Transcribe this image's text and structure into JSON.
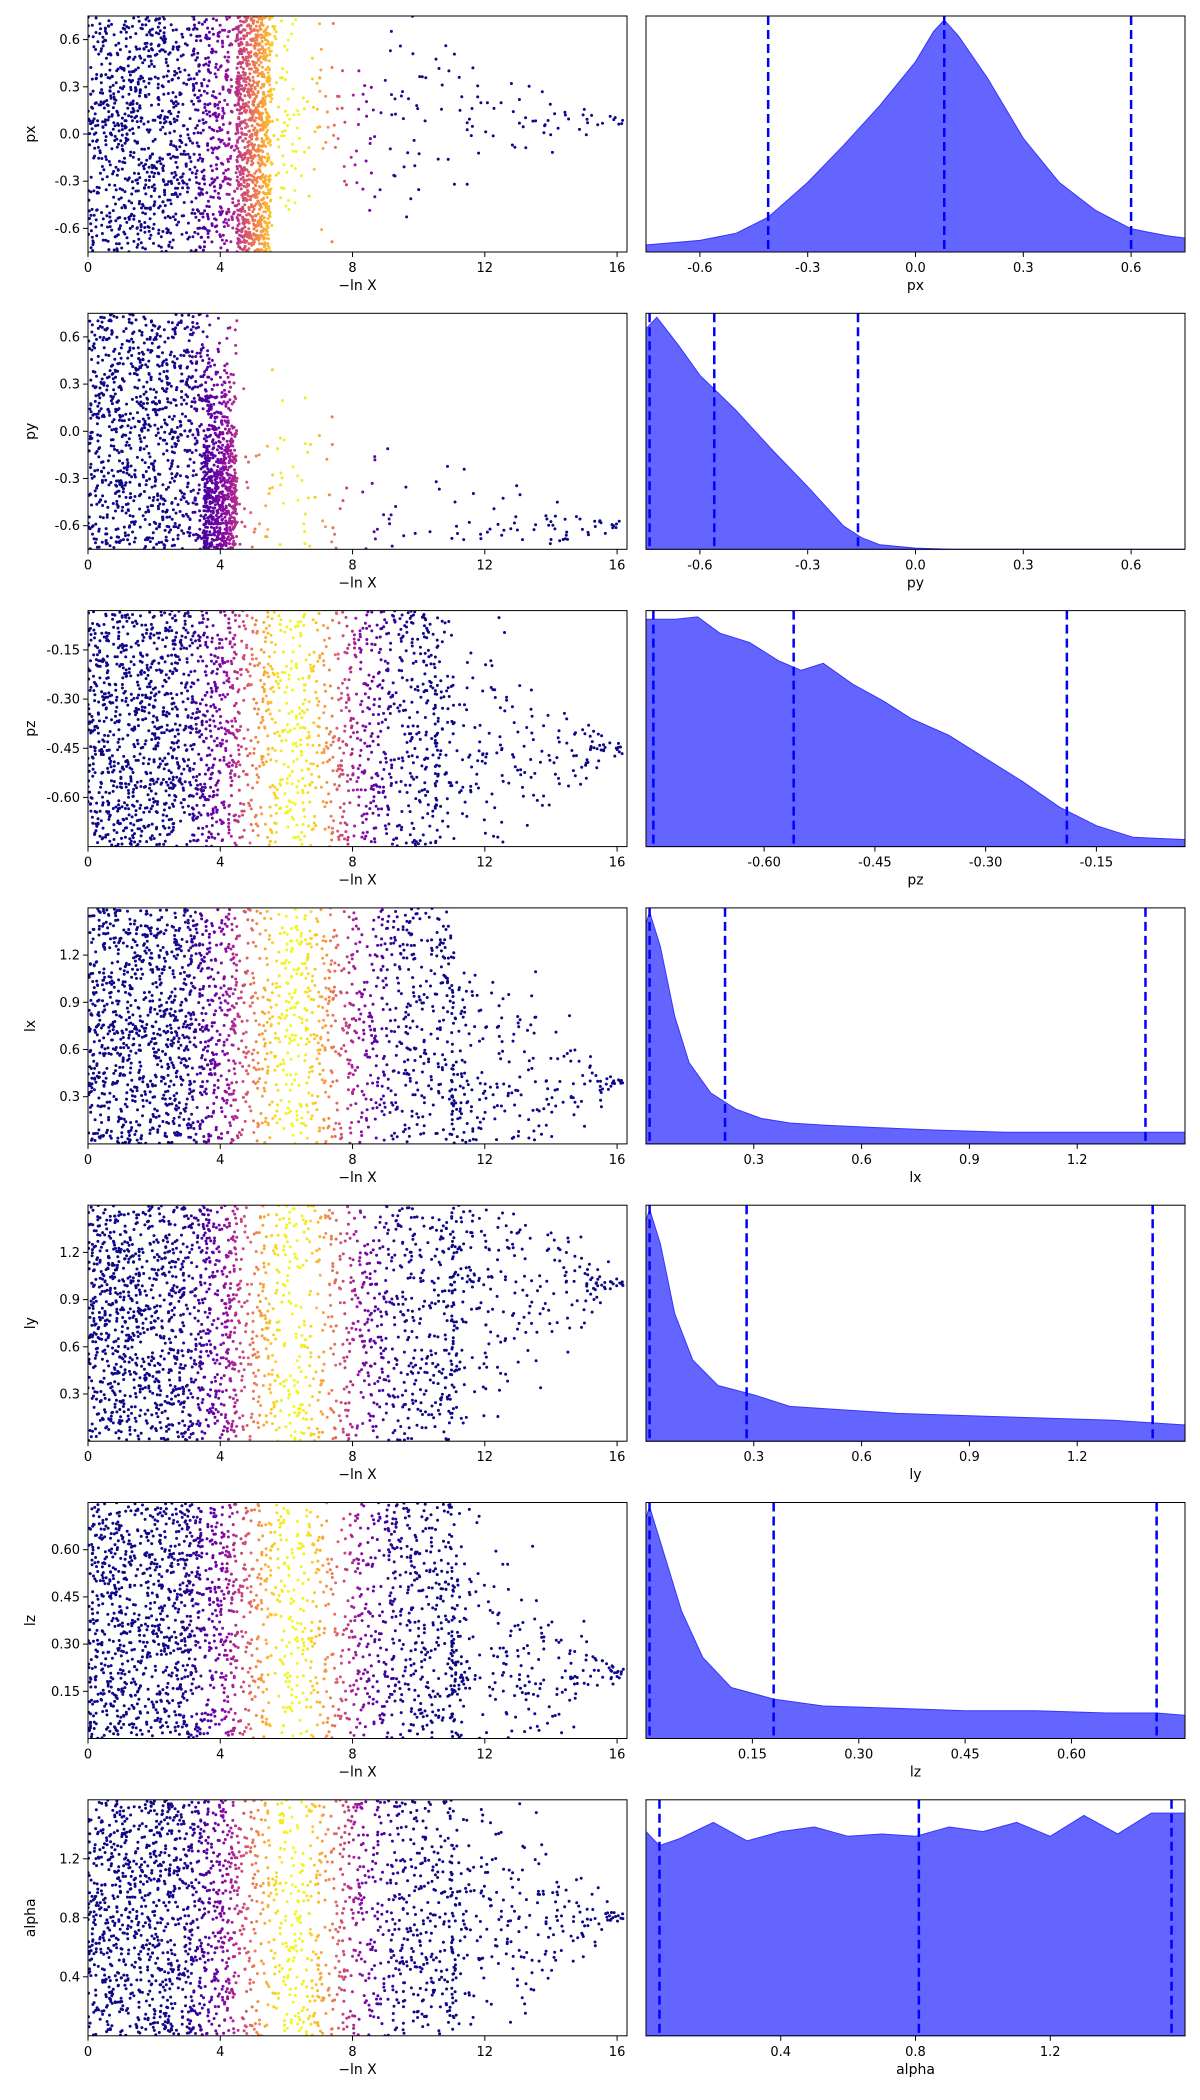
{
  "chart_data": [
    {
      "type": "scatter",
      "param": "px",
      "xlabel": "−ln X",
      "ylabel": "px",
      "xlim": [
        0,
        16.3
      ],
      "ylim": [
        -0.75,
        0.75
      ],
      "xticks": [
        "0",
        "4",
        "8",
        "12",
        "16"
      ],
      "yticks": [
        "-0.6",
        "-0.3",
        "0.0",
        "0.3",
        "0.6"
      ],
      "colormap": "plasma",
      "point_color_peak_x": 6.2,
      "approx_shape": {
        "x_range": [
          0,
          16.2
        ],
        "dense_until": 5.5,
        "tail_center_y": 0.08,
        "tail_end_x": 16.2
      }
    },
    {
      "type": "area",
      "param": "px",
      "xlabel": "px",
      "xlim": [
        -0.75,
        0.75
      ],
      "xticks": [
        "-0.6",
        "-0.3",
        "0.0",
        "0.3",
        "0.6"
      ],
      "fill": "#6464ff",
      "quantile_lines": [
        -0.41,
        0.08,
        0.6
      ],
      "quantile_line_color": "#0000ff",
      "density_x": [
        -0.75,
        -0.6,
        -0.5,
        -0.41,
        -0.3,
        -0.2,
        -0.1,
        0.0,
        0.05,
        0.08,
        0.12,
        0.2,
        0.3,
        0.4,
        0.5,
        0.6,
        0.7,
        0.75
      ],
      "density_y": [
        0.03,
        0.05,
        0.08,
        0.15,
        0.3,
        0.46,
        0.63,
        0.82,
        0.95,
        1.0,
        0.93,
        0.75,
        0.49,
        0.3,
        0.18,
        0.1,
        0.07,
        0.06
      ]
    },
    {
      "type": "scatter",
      "param": "py",
      "xlabel": "−ln X",
      "ylabel": "py",
      "xlim": [
        0,
        16.3
      ],
      "ylim": [
        -0.75,
        0.75
      ],
      "xticks": [
        "0",
        "4",
        "8",
        "12",
        "16"
      ],
      "yticks": [
        "-0.6",
        "-0.3",
        "0.0",
        "0.3",
        "0.6"
      ],
      "colormap": "plasma",
      "point_color_peak_x": 6.2,
      "approx_shape": {
        "x_range": [
          0,
          16.2
        ],
        "dense_until": 3.5,
        "tail_center_y": -0.6,
        "tail_end_x": 16.2
      }
    },
    {
      "type": "area",
      "param": "py",
      "xlabel": "py",
      "xlim": [
        -0.75,
        0.75
      ],
      "xticks": [
        "-0.6",
        "-0.3",
        "0.0",
        "0.3",
        "0.6"
      ],
      "fill": "#6464ff",
      "quantile_lines": [
        -0.74,
        -0.56,
        -0.16
      ],
      "quantile_line_color": "#0000ff",
      "density_x": [
        -0.75,
        -0.72,
        -0.66,
        -0.6,
        -0.5,
        -0.4,
        -0.3,
        -0.2,
        -0.15,
        -0.1,
        0.0,
        0.1,
        0.3,
        0.75
      ],
      "density_y": [
        0.95,
        1.0,
        0.88,
        0.75,
        0.6,
        0.43,
        0.27,
        0.1,
        0.05,
        0.02,
        0.005,
        0.0,
        0.0,
        0.0
      ]
    },
    {
      "type": "scatter",
      "param": "pz",
      "xlabel": "−ln X",
      "ylabel": "pz",
      "xlim": [
        0,
        16.3
      ],
      "ylim": [
        -0.75,
        -0.03
      ],
      "xticks": [
        "0",
        "4",
        "8",
        "12",
        "16"
      ],
      "yticks": [
        "-0.60",
        "-0.45",
        "-0.30",
        "-0.15"
      ],
      "colormap": "plasma",
      "point_color_peak_x": 6.2,
      "approx_shape": {
        "x_range": [
          0,
          16.2
        ],
        "dense_until": 10.5,
        "tail_center_y": -0.45,
        "tail_end_x": 16.2
      }
    },
    {
      "type": "area",
      "param": "pz",
      "xlabel": "pz",
      "xlim": [
        -0.76,
        -0.03
      ],
      "xticks": [
        "-0.60",
        "-0.45",
        "-0.30",
        "-0.15"
      ],
      "fill": "#6464ff",
      "quantile_lines": [
        -0.75,
        -0.56,
        -0.19
      ],
      "quantile_line_color": "#0000ff",
      "density_x": [
        -0.76,
        -0.72,
        -0.69,
        -0.66,
        -0.62,
        -0.58,
        -0.55,
        -0.52,
        -0.48,
        -0.44,
        -0.4,
        -0.35,
        -0.3,
        -0.25,
        -0.2,
        -0.15,
        -0.1,
        -0.03
      ],
      "density_y": [
        0.98,
        0.98,
        0.99,
        0.92,
        0.88,
        0.8,
        0.76,
        0.79,
        0.7,
        0.63,
        0.55,
        0.48,
        0.38,
        0.28,
        0.17,
        0.09,
        0.04,
        0.03
      ]
    },
    {
      "type": "scatter",
      "param": "lx",
      "xlabel": "−ln X",
      "ylabel": "lx",
      "xlim": [
        0,
        16.3
      ],
      "ylim": [
        0,
        1.5
      ],
      "xticks": [
        "0",
        "4",
        "8",
        "12",
        "16"
      ],
      "yticks": [
        "0.3",
        "0.6",
        "0.9",
        "1.2"
      ],
      "colormap": "plasma",
      "point_color_peak_x": 6.2,
      "approx_shape": {
        "x_range": [
          0,
          16.2
        ],
        "dense_until": 11,
        "tail_center_y": 0.4,
        "tail_end_x": 16.2
      }
    },
    {
      "type": "area",
      "param": "lx",
      "xlabel": "lx",
      "xlim": [
        0,
        1.5
      ],
      "xticks": [
        "0.3",
        "0.6",
        "0.9",
        "1.2"
      ],
      "fill": "#6464ff",
      "quantile_lines": [
        0.01,
        0.22,
        1.39
      ],
      "quantile_line_color": "#0000ff",
      "density_x": [
        0.0,
        0.01,
        0.04,
        0.08,
        0.12,
        0.18,
        0.25,
        0.32,
        0.4,
        0.5,
        0.65,
        0.8,
        1.0,
        1.2,
        1.4,
        1.5
      ],
      "density_y": [
        0.95,
        1.0,
        0.85,
        0.55,
        0.35,
        0.22,
        0.15,
        0.11,
        0.09,
        0.08,
        0.07,
        0.06,
        0.05,
        0.05,
        0.05,
        0.05
      ]
    },
    {
      "type": "scatter",
      "param": "ly",
      "xlabel": "−ln X",
      "ylabel": "ly",
      "xlim": [
        0,
        16.3
      ],
      "ylim": [
        0,
        1.5
      ],
      "xticks": [
        "0",
        "4",
        "8",
        "12",
        "16"
      ],
      "yticks": [
        "0.3",
        "0.6",
        "0.9",
        "1.2"
      ],
      "colormap": "plasma",
      "point_color_peak_x": 6.2,
      "approx_shape": {
        "x_range": [
          0,
          16.2
        ],
        "dense_until": 11,
        "tail_center_y": 1.0,
        "tail_end_x": 16.2
      }
    },
    {
      "type": "area",
      "param": "ly",
      "xlabel": "ly",
      "xlim": [
        0,
        1.5
      ],
      "xticks": [
        "0.3",
        "0.6",
        "0.9",
        "1.2"
      ],
      "fill": "#6464ff",
      "quantile_lines": [
        0.01,
        0.28,
        1.41
      ],
      "quantile_line_color": "#0000ff",
      "density_x": [
        0.0,
        0.01,
        0.04,
        0.08,
        0.13,
        0.2,
        0.3,
        0.4,
        0.5,
        0.7,
        0.9,
        1.1,
        1.3,
        1.5
      ],
      "density_y": [
        0.95,
        1.0,
        0.85,
        0.55,
        0.35,
        0.24,
        0.2,
        0.15,
        0.14,
        0.12,
        0.11,
        0.1,
        0.09,
        0.07
      ]
    },
    {
      "type": "scatter",
      "param": "lz",
      "xlabel": "−ln X",
      "ylabel": "lz",
      "xlim": [
        0,
        16.3
      ],
      "ylim": [
        0,
        0.75
      ],
      "xticks": [
        "0",
        "4",
        "8",
        "12",
        "16"
      ],
      "yticks": [
        "0.15",
        "0.30",
        "0.45",
        "0.60"
      ],
      "colormap": "plasma",
      "point_color_peak_x": 6.2,
      "approx_shape": {
        "x_range": [
          0,
          16.2
        ],
        "dense_until": 11,
        "tail_center_y": 0.2,
        "tail_end_x": 16.2
      }
    },
    {
      "type": "area",
      "param": "lz",
      "xlabel": "lz",
      "xlim": [
        0,
        0.76
      ],
      "xticks": [
        "0.15",
        "0.30",
        "0.45",
        "0.60"
      ],
      "fill": "#6464ff",
      "quantile_lines": [
        0.005,
        0.18,
        0.72
      ],
      "quantile_line_color": "#0000ff",
      "density_x": [
        0.0,
        0.005,
        0.02,
        0.05,
        0.08,
        0.12,
        0.18,
        0.25,
        0.35,
        0.45,
        0.55,
        0.65,
        0.72,
        0.76
      ],
      "density_y": [
        0.95,
        1.0,
        0.85,
        0.55,
        0.35,
        0.22,
        0.17,
        0.14,
        0.13,
        0.12,
        0.12,
        0.11,
        0.11,
        0.1
      ]
    },
    {
      "type": "scatter",
      "param": "alpha",
      "xlabel": "−ln X",
      "ylabel": "alpha",
      "xlim": [
        0,
        16.3
      ],
      "ylim": [
        0,
        1.6
      ],
      "xticks": [
        "0",
        "4",
        "8",
        "12",
        "16"
      ],
      "yticks": [
        "0.4",
        "0.8",
        "1.2"
      ],
      "colormap": "plasma",
      "point_color_peak_x": 6.2,
      "approx_shape": {
        "x_range": [
          0,
          16.2
        ],
        "dense_until": 11,
        "tail_center_y": 0.8,
        "tail_end_x": 16.2
      }
    },
    {
      "type": "area",
      "param": "alpha",
      "xlabel": "alpha",
      "xlim": [
        0,
        1.6
      ],
      "xticks": [
        "0.4",
        "0.8",
        "1.2"
      ],
      "fill": "#6464ff",
      "quantile_lines": [
        0.04,
        0.81,
        1.56
      ],
      "quantile_line_color": "#0000ff",
      "density_x": [
        0.0,
        0.04,
        0.1,
        0.2,
        0.3,
        0.4,
        0.5,
        0.6,
        0.7,
        0.8,
        0.9,
        1.0,
        1.1,
        1.2,
        1.3,
        1.4,
        1.5,
        1.6
      ],
      "density_y": [
        0.88,
        0.82,
        0.85,
        0.92,
        0.84,
        0.88,
        0.9,
        0.86,
        0.87,
        0.86,
        0.9,
        0.88,
        0.92,
        0.86,
        0.95,
        0.87,
        0.96,
        0.96
      ]
    }
  ]
}
